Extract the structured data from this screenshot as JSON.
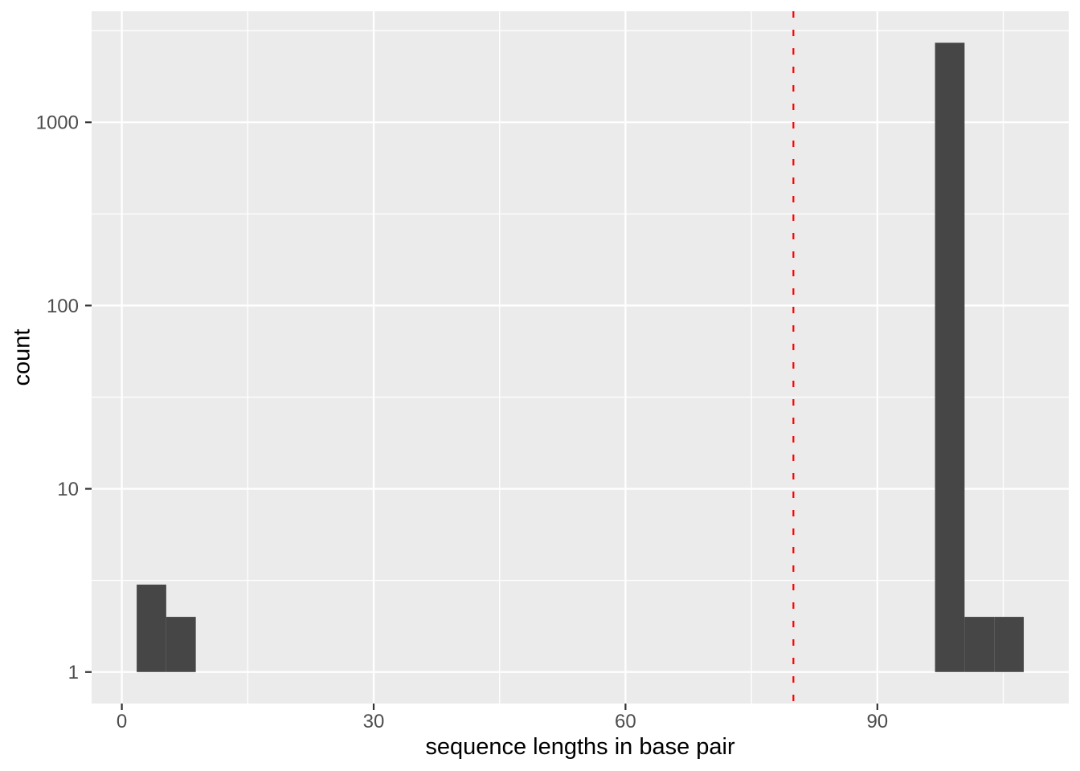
{
  "chart_data": {
    "type": "histogram",
    "title": "",
    "xlabel": "sequence lengths in base pair",
    "ylabel": "count",
    "x_scale": "linear",
    "y_scale": "log10",
    "grid": true,
    "legend": "none",
    "bins": [
      {
        "x0": 1.77,
        "x1": 5.29,
        "count": 3
      },
      {
        "x0": 5.29,
        "x1": 8.81,
        "count": 2
      },
      {
        "x0": 96.87,
        "x1": 100.39,
        "count": 2718
      },
      {
        "x0": 100.39,
        "x1": 103.92,
        "count": 2
      },
      {
        "x0": 103.92,
        "x1": 107.44,
        "count": 2
      }
    ],
    "vline": {
      "x": 80,
      "style": "dashed",
      "color": "#FF0000"
    },
    "x_ticks": [
      {
        "value": 0,
        "label": "0"
      },
      {
        "value": 30,
        "label": "30"
      },
      {
        "value": 60,
        "label": "60"
      },
      {
        "value": 90,
        "label": "90"
      }
    ],
    "y_ticks": [
      {
        "value": 1,
        "label": "1"
      },
      {
        "value": 10,
        "label": "10"
      },
      {
        "value": 100,
        "label": "100"
      },
      {
        "value": 1000,
        "label": "1000"
      }
    ],
    "x_minor_ticks": [
      15,
      45,
      75,
      105
    ],
    "y_minor_ticks_log10": [
      0.5,
      1.5,
      2.5,
      3.5
    ],
    "x_domain": [
      -3.6,
      112.8
    ],
    "y_log10_domain": [
      -0.172,
      3.606
    ],
    "colors": {
      "background": "#FFFFFF",
      "panel_bg": "#EBEBEB",
      "grid": "#FFFFFF",
      "bar": "#464646",
      "tick_mark": "#333333",
      "tick_label": "#4D4D4D",
      "axis_title": "#000000",
      "vline": "#FF0000"
    }
  }
}
